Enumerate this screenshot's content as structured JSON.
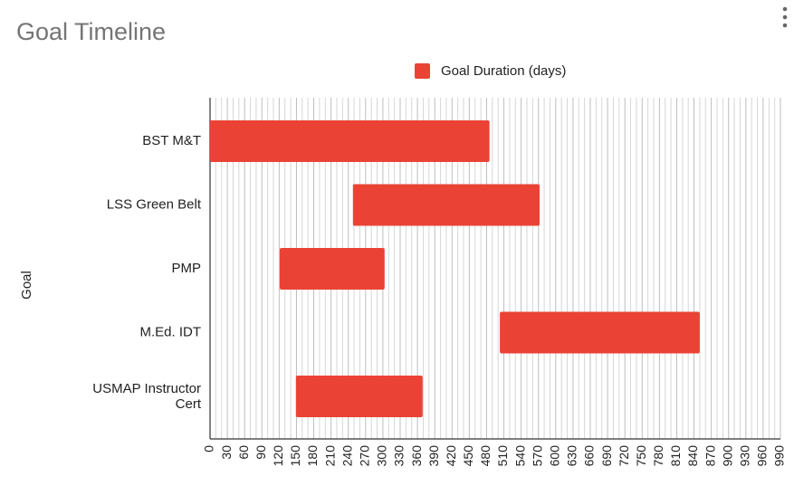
{
  "chart_data": {
    "type": "floating-bar",
    "title": "Goal Timeline",
    "y_label": "Goal",
    "categories": [
      "BST M&T",
      "LSS Green Belt",
      "PMP",
      "M.Ed. IDT",
      "USMAP Instructor Cert"
    ],
    "series": [
      {
        "name": "Goal Duration (days)",
        "color": "#ea4335",
        "start": [
          0,
          248,
          121,
          503,
          149
        ],
        "values": [
          485,
          324,
          182,
          347,
          220
        ]
      }
    ],
    "xlim": [
      0,
      990
    ],
    "xticks": [
      0,
      30,
      60,
      90,
      120,
      150,
      180,
      210,
      240,
      270,
      300,
      330,
      360,
      390,
      420,
      450,
      480,
      510,
      540,
      570,
      600,
      630,
      660,
      690,
      720,
      750,
      780,
      810,
      840,
      870,
      900,
      930,
      960,
      990
    ],
    "grid": true,
    "minor_grid_count": 2,
    "legend": "top"
  }
}
